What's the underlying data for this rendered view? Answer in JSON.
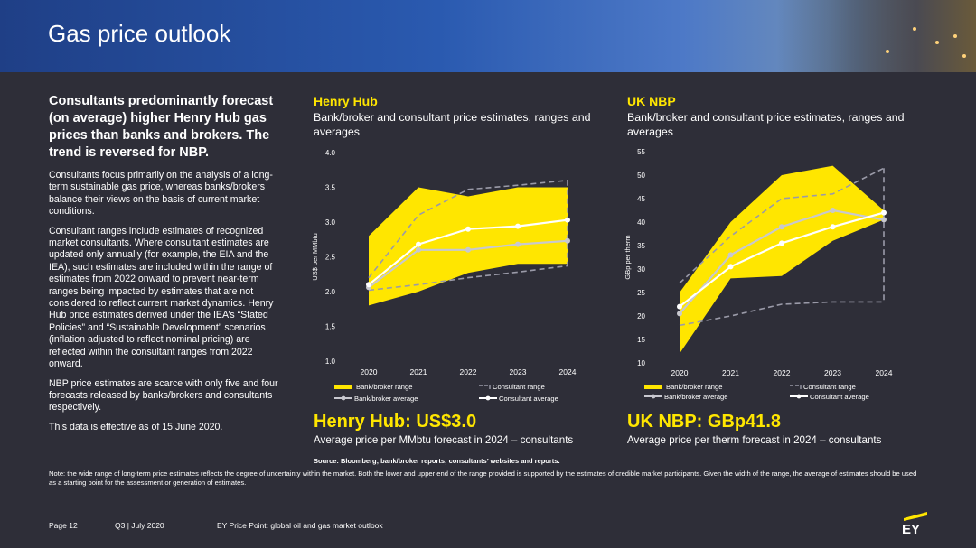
{
  "header": {
    "title": "Gas price outlook"
  },
  "left": {
    "lead": "Consultants predominantly forecast (on average) higher Henry Hub gas prices than banks and brokers. The trend is reversed for NBP.",
    "p1": "Consultants focus primarily on the analysis of a long-term sustainable gas price, whereas banks/brokers balance their views on the basis of current market conditions.",
    "p2": "Consultant ranges include estimates of recognized market consultants. Where consultant estimates are updated only annually (for example, the EIA and the IEA), such estimates are included within the range of estimates from 2022 onward to prevent near-term ranges being impacted by estimates that are not considered to reflect current market dynamics. Henry Hub price estimates derived under the IEA’s “Stated Policies” and “Sustainable Development” scenarios (inflation adjusted to reflect nominal pricing) are reflected within the consultant ranges from 2022 onward.",
    "p3": "NBP price estimates are scarce with only five and four forecasts released by banks/brokers and consultants respectively.",
    "p4": "This data is effective as of 15 June 2020."
  },
  "henry": {
    "title": "Henry Hub",
    "subtitle": "Bank/broker and consultant price estimates, ranges and averages",
    "kpi_label": "Henry Hub:",
    "kpi_value": "US$3.0",
    "kpi_sub": "Average price per MMbtu forecast in 2024 – consultants"
  },
  "nbp": {
    "title": "UK NBP",
    "subtitle": "Bank/broker and consultant price estimates, ranges and averages",
    "kpi_label": "UK NBP:",
    "kpi_value": "GBp41.8",
    "kpi_sub": "Average price per therm forecast in 2024 – consultants"
  },
  "source": "Source: Bloomberg; bank/broker reports; consultants’ websites and reports.",
  "note": "Note: the wide range of long-term price estimates reflects the degree of uncertainty within the market. Both the lower and upper end of the range provided is supported by the estimates of credible market participants. Given the width of the range, the average of estimates should be used as a starting point for the assessment or generation of estimates.",
  "footer": {
    "page": "Page 12",
    "period": "Q3 | July 2020",
    "doc": "EY Price Point: global oil and gas market outlook",
    "logo": "EY"
  },
  "colors": {
    "yellow": "#ffe600",
    "dark": "#2e2e38",
    "grey_line": "#c8c8cf",
    "dashed": "#9a9aa8"
  },
  "chart_data": [
    {
      "type": "area",
      "title": "Henry Hub",
      "ylabel": "US$ per MMbtu",
      "x": [
        "2020",
        "2021",
        "2022",
        "2023",
        "2024"
      ],
      "ylim": [
        1.0,
        4.0
      ],
      "yticks": [
        "1.0",
        "1.5",
        "2.0",
        "2.5",
        "3.0",
        "3.5",
        "4.0"
      ],
      "bank_range_low": [
        1.8,
        2.0,
        2.27,
        2.4,
        2.4
      ],
      "bank_range_high": [
        2.8,
        3.5,
        3.37,
        3.5,
        3.5
      ],
      "consultant_range_low": [
        2.02,
        2.1,
        2.2,
        2.28,
        2.37
      ],
      "consultant_range_high": [
        2.2,
        3.1,
        3.47,
        3.53,
        3.6
      ],
      "series": [
        {
          "name": "Bank/broker average",
          "values": [
            2.06,
            2.6,
            2.6,
            2.68,
            2.73
          ]
        },
        {
          "name": "Consultant average",
          "values": [
            2.1,
            2.68,
            2.9,
            2.94,
            3.03
          ]
        }
      ],
      "legend": [
        "Bank/broker range",
        "Consultant range",
        "Bank/broker average",
        "Consultant average"
      ]
    },
    {
      "type": "area",
      "title": "UK NBP",
      "ylabel": "GBp per therm",
      "x": [
        "2020",
        "2021",
        "2022",
        "2023",
        "2024"
      ],
      "ylim": [
        10,
        55
      ],
      "yticks": [
        "10",
        "15",
        "20",
        "25",
        "30",
        "35",
        "40",
        "45",
        "50",
        "55"
      ],
      "bank_range_low": [
        12,
        28,
        28.5,
        36,
        40.5
      ],
      "bank_range_high": [
        25,
        40,
        50,
        52,
        42.5
      ],
      "consultant_range_low": [
        18,
        20,
        22.5,
        23,
        23
      ],
      "consultant_range_high": [
        27,
        37,
        45,
        46,
        51.5
      ],
      "series": [
        {
          "name": "Bank/broker average",
          "values": [
            20.5,
            33,
            39,
            42.5,
            40.5
          ]
        },
        {
          "name": "Consultant average",
          "values": [
            22,
            30.5,
            35.5,
            39,
            42
          ]
        }
      ],
      "legend": [
        "Bank/broker range",
        "Consultant range",
        "Bank/broker average",
        "Consultant average"
      ]
    }
  ]
}
